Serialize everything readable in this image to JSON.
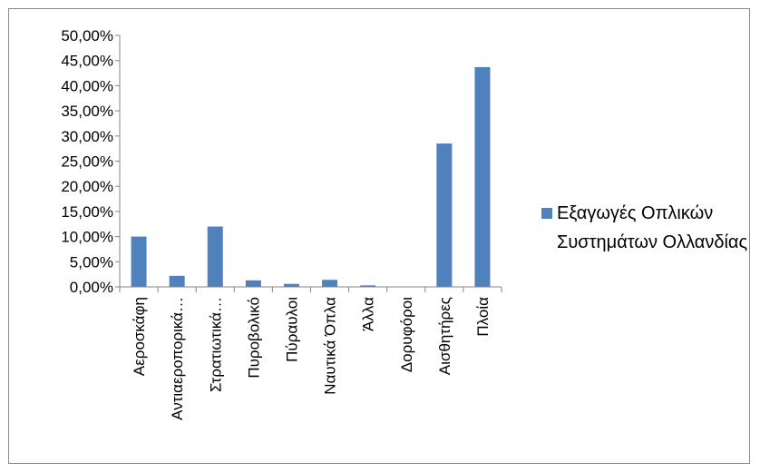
{
  "chart_data": {
    "type": "bar",
    "categories": [
      "Αεροσκάφη",
      "Αντιαεροπορικά…",
      "Στρατιωτικά…",
      "Πυροβολικό",
      "Πύραυλοι",
      "Ναυτικά Όπλα",
      "Άλλα",
      "Δορυφόροι",
      "Αισθητήρες",
      "Πλοία"
    ],
    "series": [
      {
        "name": "Εξαγωγές Οπλικών Συστημάτων Ολλανδίας",
        "values": [
          10.0,
          2.2,
          12.0,
          1.3,
          0.6,
          1.4,
          0.3,
          0.0,
          28.5,
          43.7
        ],
        "color": "#4f81bd"
      }
    ],
    "yticks": [
      "0,00%",
      "5,00%",
      "10,00%",
      "15,00%",
      "20,00%",
      "25,00%",
      "30,00%",
      "35,00%",
      "40,00%",
      "45,00%",
      "50,00%"
    ],
    "ylim": [
      0,
      50
    ],
    "grid": false,
    "legend_position": "right",
    "title": "",
    "xlabel": "",
    "ylabel": ""
  }
}
